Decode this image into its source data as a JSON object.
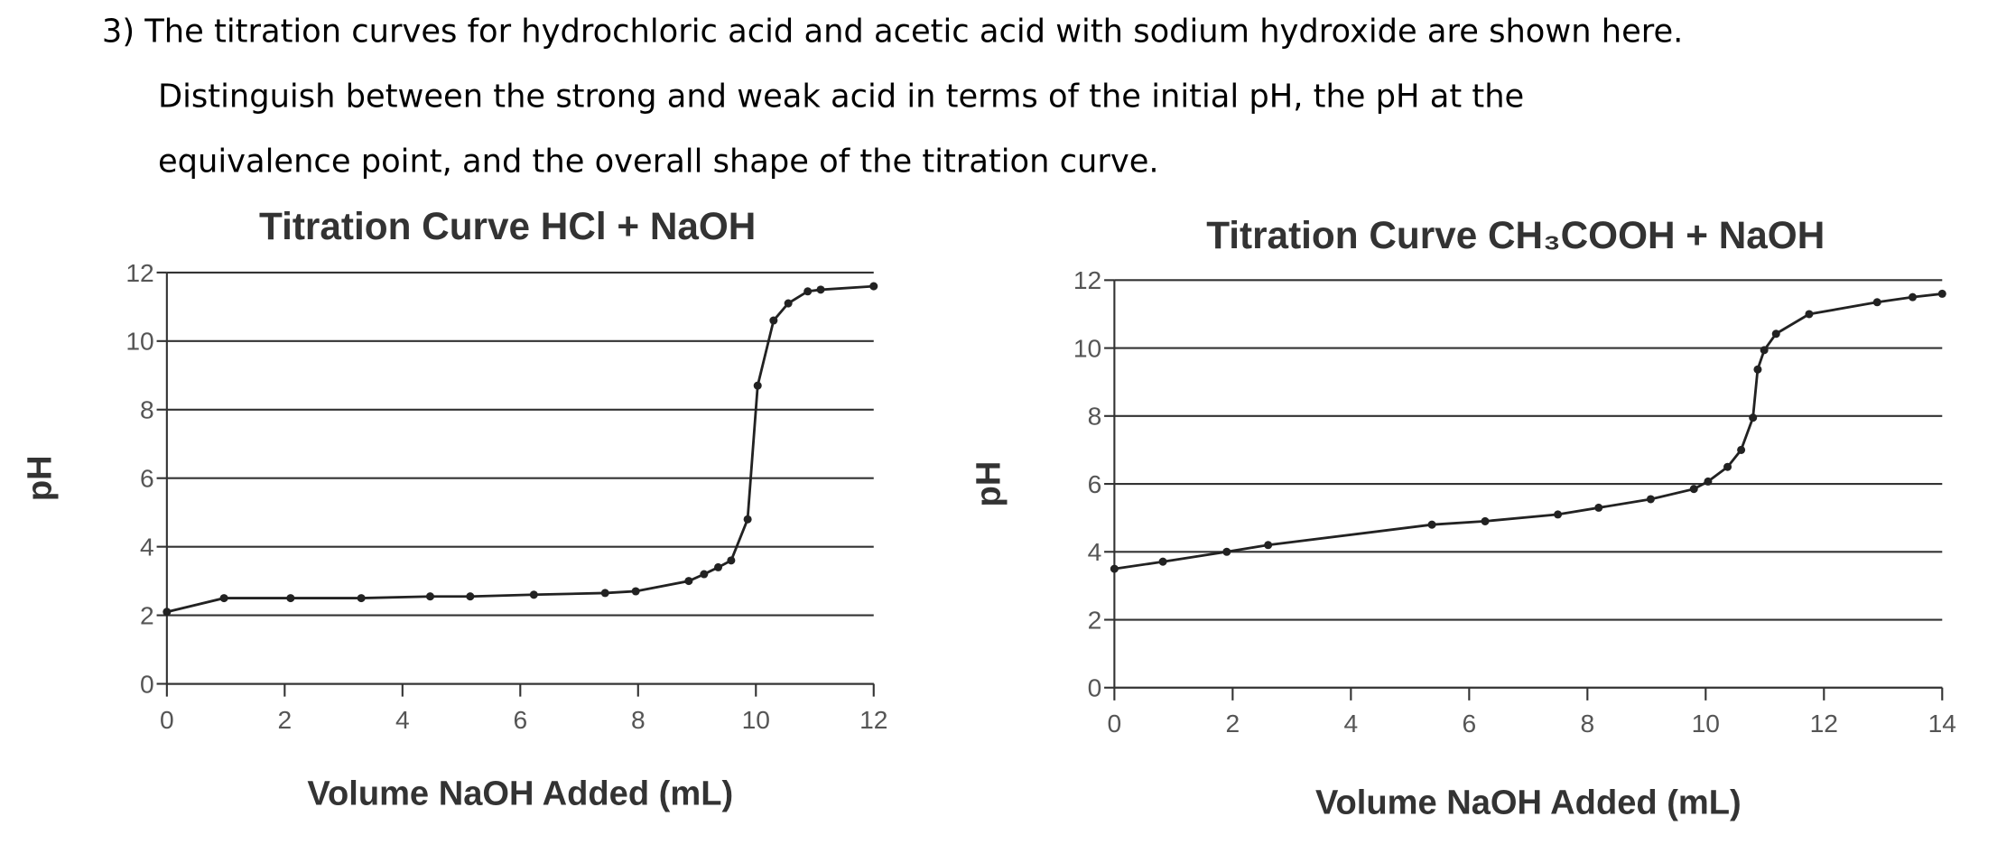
{
  "question": {
    "lines": [
      "3) The titration curves for hydrochloric acid and acetic acid with sodium hydroxide are shown here.",
      "Distinguish between the strong and weak acid in terms of the initial pH, the pH at the",
      "equivalence point, and the overall shape of the titration curve."
    ]
  },
  "chart_data": [
    {
      "type": "line",
      "title": "Titration Curve HCl + NaOH",
      "xlabel": "Volume NaOH Added (mL)",
      "ylabel": "pH",
      "x": [
        0,
        0.97,
        2.1,
        3.3,
        4.47,
        5.15,
        6.23,
        7.44,
        7.96,
        8.86,
        9.12,
        9.36,
        9.58,
        9.86,
        10.03,
        10.3,
        10.55,
        10.88,
        11.1,
        12
      ],
      "values": [
        2.1,
        2.5,
        2.5,
        2.5,
        2.55,
        2.55,
        2.6,
        2.65,
        2.7,
        3.0,
        3.2,
        3.4,
        3.6,
        4.8,
        8.7,
        10.6,
        11.1,
        11.45,
        11.5,
        11.6
      ],
      "color": "#222222",
      "xlim": [
        0,
        12
      ],
      "ylim": [
        0,
        12
      ],
      "xticks": [
        0,
        2,
        4,
        6,
        8,
        10,
        12
      ],
      "yticks": [
        0,
        2,
        4,
        6,
        8,
        10,
        12
      ],
      "grid": true
    },
    {
      "type": "line",
      "title": "Titration Curve CH₃COOH + NaOH",
      "xlabel": "Volume NaOH Added (mL)",
      "ylabel": "pH",
      "x": [
        0,
        0.82,
        1.9,
        2.6,
        5.37,
        6.27,
        7.5,
        8.19,
        9.07,
        9.8,
        10.04,
        10.37,
        10.6,
        10.8,
        10.88,
        10.99,
        11.19,
        11.75,
        12.9,
        13.5,
        14
      ],
      "values": [
        3.5,
        3.71,
        4.0,
        4.2,
        4.8,
        4.9,
        5.1,
        5.3,
        5.55,
        5.85,
        6.07,
        6.5,
        7.0,
        7.95,
        9.37,
        9.94,
        10.42,
        11.0,
        11.35,
        11.5,
        11.6
      ],
      "color": "#222222",
      "xlim": [
        0,
        14
      ],
      "ylim": [
        0,
        12
      ],
      "xticks": [
        0,
        2,
        4,
        6,
        8,
        10,
        12,
        14
      ],
      "yticks": [
        0,
        2,
        4,
        6,
        8,
        10,
        12
      ],
      "grid": true
    }
  ]
}
